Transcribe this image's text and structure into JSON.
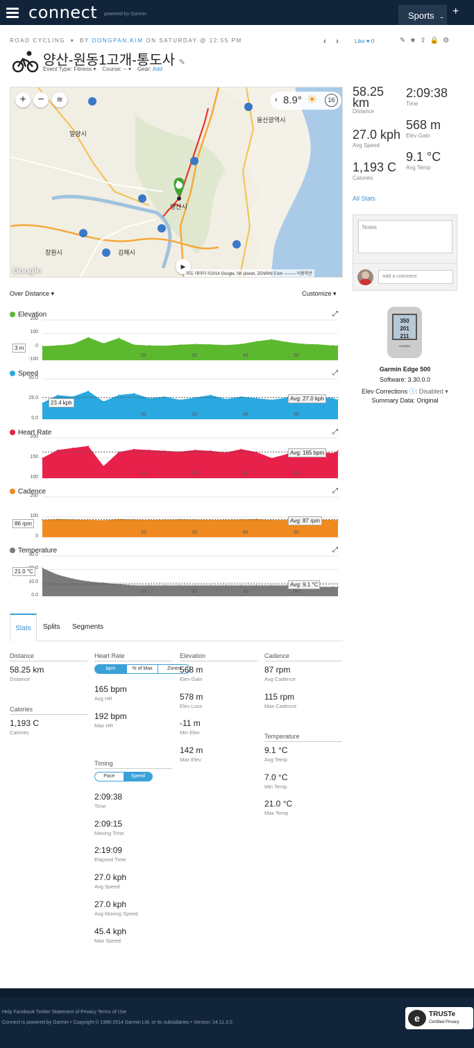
{
  "header": {
    "logo": "connect",
    "powered": "powered by Garmin",
    "sports": "Sports",
    "plus": "+"
  },
  "activity": {
    "type": "ROAD CYCLING",
    "by": "BY",
    "user": "DONGPAN,KIM",
    "when": "ON SATURDAY @ 12:55 PM",
    "title": "양산-원동1고개-통도사",
    "event_type": "Event Type: Fitness",
    "course": "Course: --",
    "gear": "Gear:",
    "gear_add": "Add",
    "like": "Like",
    "like_count": "0"
  },
  "map": {
    "temp": "8.9°",
    "wind": "16",
    "labels": [
      "밀양시",
      "울산광역시",
      "양산시",
      "창원시",
      "김해시"
    ],
    "route_codes": [
      "55",
      "65",
      "1",
      "55",
      "1045",
      "551",
      "10",
      "14",
      "65",
      "35",
      "7"
    ],
    "footer": "지도 데이터 ©2014 Google, SK planet, ZENRIN   5 km ────  이용약관",
    "google": "Google"
  },
  "summary": [
    {
      "value": "58.25 km",
      "label": "Distance"
    },
    {
      "value": "2:09:38",
      "label": "Time"
    },
    {
      "value": "27.0 kph",
      "label": "Avg Speed"
    },
    {
      "value": "568 m",
      "label": "Elev Gain"
    },
    {
      "value": "1,193 C",
      "label": "Calories"
    },
    {
      "value": "9.1 °C",
      "label": "Avg Temp"
    }
  ],
  "all_stats": "All Stats",
  "notes": {
    "placeholder": "Notes",
    "comment_placeholder": "Add a comment."
  },
  "device": {
    "name": "Garmin Edge 500",
    "software": "Software: 3.30.0.0",
    "elev": "Elev Corrections",
    "elev_state": "Disabled",
    "summary": "Summary Data: Original",
    "screen": [
      "350",
      "201",
      "211"
    ],
    "brand": "GARMIN"
  },
  "chart_controls": {
    "over": "Over Distance",
    "customize": "Customize"
  },
  "chart_data": [
    {
      "type": "area",
      "title": "Elevation",
      "color": "#5cb82f",
      "y_ticks": [
        "200",
        "100",
        "0",
        "-100"
      ],
      "x_ticks": [
        "20",
        "30",
        "40",
        "50"
      ],
      "cursor": "3 m",
      "avg": null,
      "x": [
        0,
        3,
        6,
        9,
        12,
        15,
        18,
        21,
        24,
        27,
        30,
        33,
        36,
        39,
        42,
        45,
        48,
        51,
        54,
        57,
        58
      ],
      "values": [
        5,
        10,
        20,
        70,
        25,
        65,
        15,
        10,
        8,
        15,
        20,
        18,
        12,
        20,
        40,
        55,
        35,
        22,
        18,
        10,
        8
      ],
      "ylim": [
        -100,
        200
      ]
    },
    {
      "type": "area",
      "title": "Speed",
      "color": "#2aa8e0",
      "y_ticks": [
        "50.0",
        "25.0",
        "0.0"
      ],
      "x_ticks": [
        "20",
        "30",
        "40",
        "50"
      ],
      "cursor": "23.4 kph",
      "avg": "Avg: 27.0 kph",
      "avg_value": 27.0,
      "x": [
        0,
        3,
        6,
        9,
        12,
        15,
        18,
        21,
        24,
        27,
        30,
        33,
        36,
        39,
        42,
        45,
        48,
        51,
        54,
        57,
        58
      ],
      "values": [
        20,
        30,
        28,
        35,
        22,
        30,
        32,
        26,
        28,
        24,
        27,
        30,
        25,
        28,
        26,
        24,
        27,
        30,
        28,
        26,
        24
      ],
      "ylim": [
        0,
        50
      ]
    },
    {
      "type": "area",
      "title": "Heart Rate",
      "color": "#e8214b",
      "y_ticks": [
        "200",
        "150",
        "100"
      ],
      "x_ticks": [
        "20",
        "30",
        "40",
        "50"
      ],
      "cursor": null,
      "avg": "Avg: 165 bpm",
      "avg_value": 165,
      "x": [
        0,
        3,
        6,
        9,
        12,
        15,
        18,
        21,
        24,
        27,
        30,
        33,
        36,
        39,
        42,
        45,
        48,
        51,
        54,
        57,
        58
      ],
      "values": [
        150,
        170,
        175,
        180,
        130,
        165,
        172,
        170,
        168,
        166,
        170,
        168,
        164,
        172,
        165,
        150,
        160,
        168,
        166,
        162,
        168
      ],
      "ylim": [
        100,
        200
      ]
    },
    {
      "type": "area",
      "title": "Cadence",
      "color": "#ee8a1f",
      "y_ticks": [
        "200",
        "100",
        "0"
      ],
      "x_ticks": [
        "20",
        "30",
        "40",
        "50"
      ],
      "cursor": "86 rpm",
      "avg": "Avg: 87 rpm",
      "avg_value": 87,
      "x": [
        0,
        3,
        6,
        9,
        12,
        15,
        18,
        21,
        24,
        27,
        30,
        33,
        36,
        39,
        42,
        45,
        48,
        51,
        54,
        57,
        58
      ],
      "values": [
        85,
        90,
        88,
        86,
        84,
        90,
        88,
        86,
        87,
        89,
        88,
        86,
        87,
        88,
        90,
        86,
        85,
        88,
        87,
        86,
        84
      ],
      "ylim": [
        0,
        200
      ]
    },
    {
      "type": "area",
      "title": "Temperature",
      "color": "#7a7a7a",
      "y_ticks": [
        "30.0",
        "20.0",
        "10.0",
        "0.0"
      ],
      "x_ticks": [
        "20",
        "30",
        "40",
        "50"
      ],
      "cursor": "21.0 °C",
      "avg": "Avg: 9.1 °C",
      "avg_value": 9.1,
      "x": [
        0,
        3,
        6,
        9,
        12,
        15,
        18,
        21,
        24,
        27,
        30,
        33,
        36,
        39,
        42,
        45,
        48,
        51,
        54,
        57,
        58
      ],
      "values": [
        21,
        16,
        13,
        11,
        10,
        9,
        8,
        8,
        8,
        8,
        8,
        8,
        8,
        8,
        8,
        8,
        8,
        8,
        7,
        7,
        7
      ],
      "ylim": [
        0,
        30
      ]
    }
  ],
  "tabs": [
    "Stats",
    "Splits",
    "Segments"
  ],
  "stats": {
    "distance": {
      "head": "Distance",
      "items": [
        {
          "v": "58.25 km",
          "l": "Distance"
        }
      ]
    },
    "calories": {
      "head": "Calories",
      "items": [
        {
          "v": "1,193 C",
          "l": "Calories"
        }
      ]
    },
    "hr": {
      "head": "Heart Rate",
      "toggle": [
        "bpm",
        "% of Max",
        "Zones"
      ],
      "items": [
        {
          "v": "165 bpm",
          "l": "Avg HR"
        },
        {
          "v": "192 bpm",
          "l": "Max HR"
        }
      ]
    },
    "timing": {
      "head": "Timing",
      "toggle": [
        "Pace",
        "Speed"
      ],
      "items": [
        {
          "v": "2:09:38",
          "l": "Time"
        },
        {
          "v": "2:09:15",
          "l": "Moving Time"
        },
        {
          "v": "2:19:09",
          "l": "Elapsed Time"
        },
        {
          "v": "27.0 kph",
          "l": "Avg Speed"
        },
        {
          "v": "27.0 kph",
          "l": "Avg Moving Speed"
        },
        {
          "v": "45.4 kph",
          "l": "Max Speed"
        }
      ]
    },
    "elevation": {
      "head": "Elevation",
      "items": [
        {
          "v": "568 m",
          "l": "Elev Gain"
        },
        {
          "v": "578 m",
          "l": "Elev Loss"
        },
        {
          "v": "-11 m",
          "l": "Min Elev"
        },
        {
          "v": "142 m",
          "l": "Max Elev"
        }
      ]
    },
    "cadence": {
      "head": "Cadence",
      "items": [
        {
          "v": "87 rpm",
          "l": "Avg Cadence"
        },
        {
          "v": "115 rpm",
          "l": "Max Cadence"
        }
      ]
    },
    "temperature": {
      "head": "Temperature",
      "items": [
        {
          "v": "9.1 °C",
          "l": "Avg Temp"
        },
        {
          "v": "7.0 °C",
          "l": "Min Temp"
        },
        {
          "v": "21.0 °C",
          "l": "Max Temp"
        }
      ]
    }
  },
  "footer": {
    "links": "Help Facebook Twitter Statement of Privacy Terms of Use",
    "copy": "Connect is powered by Garmin • Copyright © 1996-2014 Garmin Ltd. or its subsidiaries • Version: 14.11.3.0",
    "truste": "TRUSTe",
    "truste_sub": "Certified Privacy"
  }
}
